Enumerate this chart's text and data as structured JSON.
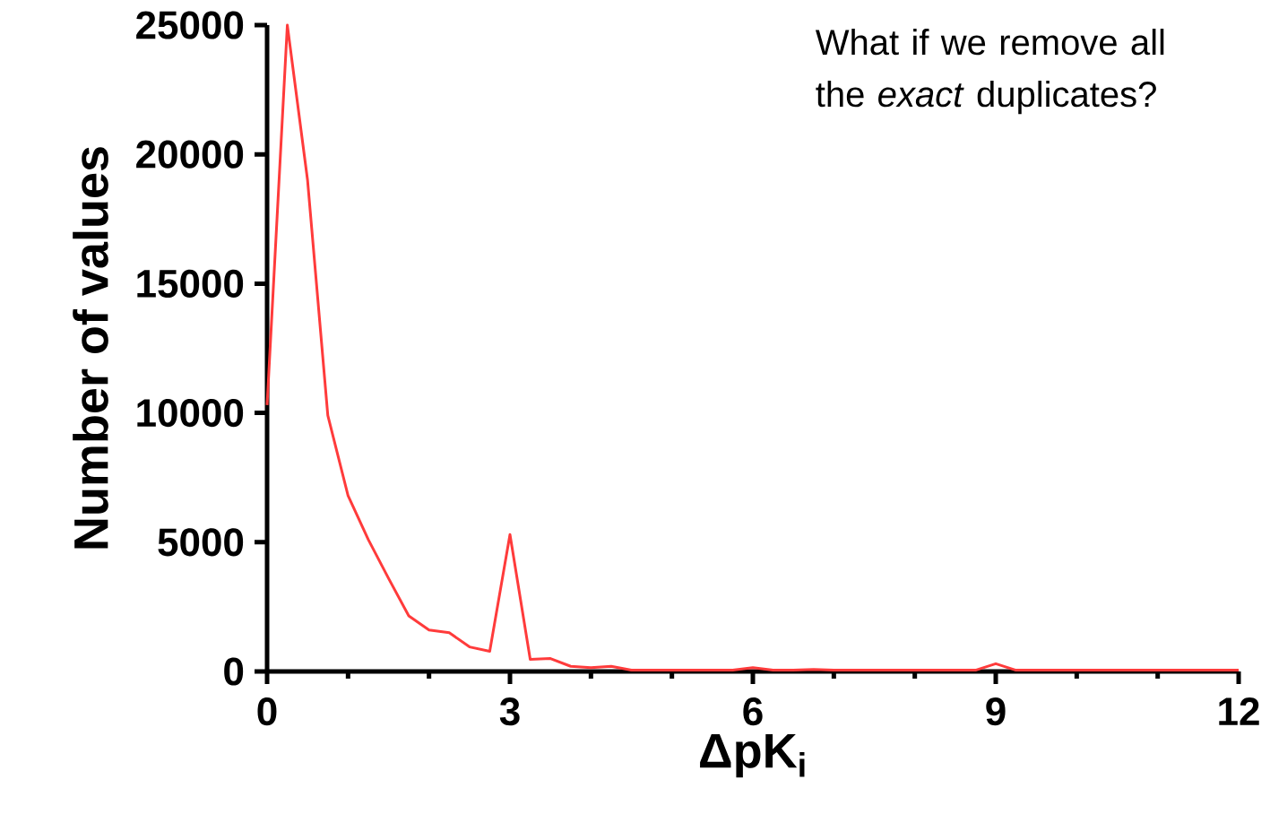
{
  "chart_data": {
    "type": "line",
    "xlabel": "ΔpK$_{i}$",
    "ylabel": "Number of values",
    "annotations": [
      "What if we remove all the *exact* duplicates?"
    ],
    "x": [
      0,
      0.25,
      0.5,
      0.75,
      1,
      1.25,
      1.5,
      1.75,
      2,
      2.25,
      2.5,
      2.75,
      3,
      3.25,
      3.5,
      3.75,
      4,
      4.25,
      4.5,
      4.75,
      5,
      5.25,
      5.5,
      5.75,
      6,
      6.25,
      6.5,
      6.75,
      7,
      7.25,
      7.5,
      7.75,
      8,
      8.25,
      8.5,
      8.75,
      9,
      9.25,
      9.5,
      9.75,
      10,
      10.25,
      10.5,
      10.75,
      11,
      11.25,
      11.5,
      11.75,
      12
    ],
    "values": [
      10300,
      25000,
      19000,
      9900,
      6800,
      5100,
      3600,
      2150,
      1600,
      1500,
      950,
      780,
      5300,
      470,
      500,
      200,
      150,
      200,
      50,
      50,
      50,
      50,
      50,
      50,
      150,
      50,
      50,
      80,
      50,
      50,
      50,
      50,
      50,
      50,
      50,
      50,
      300,
      50,
      50,
      50,
      50,
      50,
      50,
      50,
      50,
      50,
      50,
      50,
      50
    ],
    "color": "#ff3b3b",
    "xlim": [
      0,
      12
    ],
    "ylim": [
      0,
      25000
    ],
    "xticks": [
      0,
      {
        "value": 1,
        "label": null
      },
      {
        "value": 2,
        "label": null
      },
      3,
      {
        "value": 4,
        "label": null
      },
      {
        "value": 5,
        "label": null
      },
      6,
      {
        "value": 7,
        "label": null
      },
      {
        "value": 8,
        "label": null
      },
      9,
      {
        "value": 10,
        "label": null
      },
      {
        "value": 11,
        "label": null
      },
      12
    ],
    "yticks": [
      0,
      5000,
      10000,
      15000,
      20000,
      25000
    ]
  }
}
